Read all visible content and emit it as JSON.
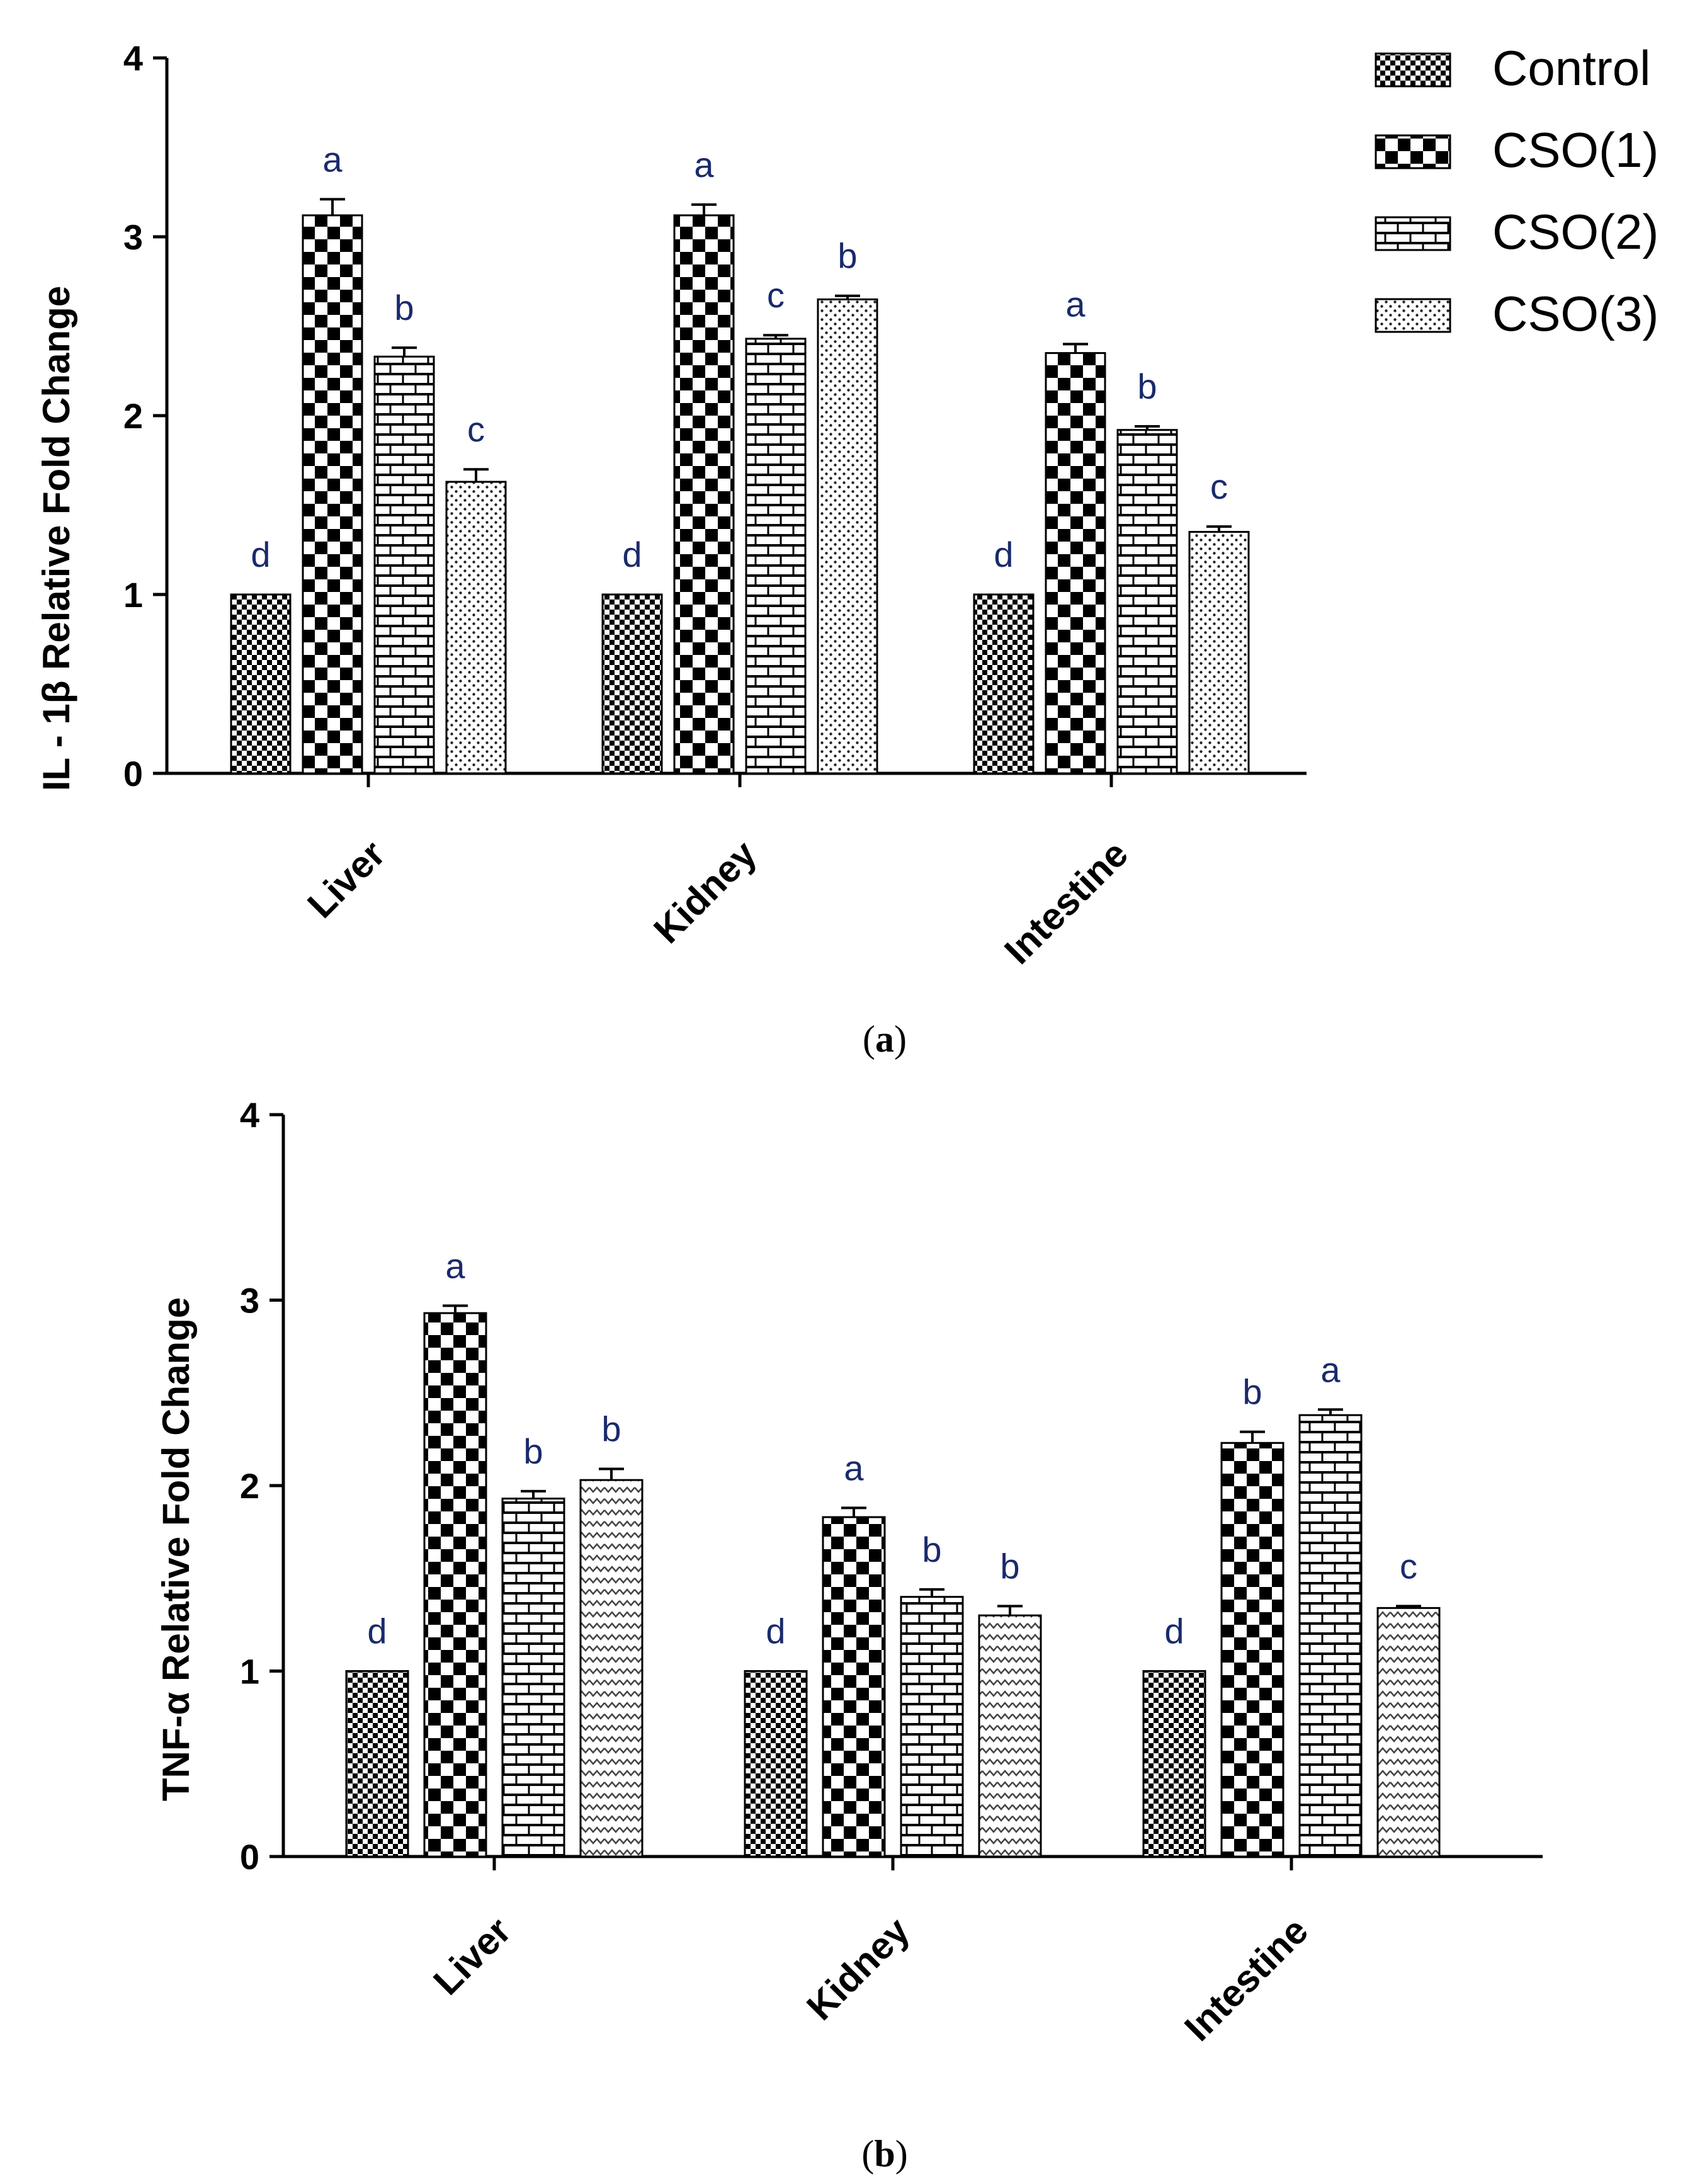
{
  "chart_data": [
    {
      "type": "bar",
      "panel_label": "a",
      "ylabel": "IL - 1β Relative Fold Change",
      "xlabel": "",
      "ylim": [
        0,
        4
      ],
      "yticks": [
        "0",
        "1",
        "2",
        "3",
        "4"
      ],
      "categories": [
        "Liver",
        "Kidney",
        "Intestine"
      ],
      "series": [
        {
          "name": "Control",
          "values": [
            1.0,
            1.0,
            1.0
          ],
          "errors": [
            0,
            0,
            0
          ],
          "letters": [
            "d",
            "d",
            "d"
          ],
          "pattern": "checker-fine"
        },
        {
          "name": "CSO(1)",
          "values": [
            3.12,
            3.12,
            2.35
          ],
          "errors": [
            0.09,
            0.06,
            0.05
          ],
          "letters": [
            "a",
            "a",
            "a"
          ],
          "pattern": "checker-large"
        },
        {
          "name": "CSO(2)",
          "values": [
            2.33,
            2.43,
            1.92
          ],
          "errors": [
            0.05,
            0.02,
            0.02
          ],
          "letters": [
            "b",
            "c",
            "b"
          ],
          "pattern": "brick"
        },
        {
          "name": "CSO(3)",
          "values": [
            1.63,
            2.65,
            1.35
          ],
          "errors": [
            0.07,
            0.02,
            0.03
          ],
          "letters": [
            "c",
            "b",
            "c"
          ],
          "pattern": "dots"
        }
      ],
      "legend": {
        "position": "top-right",
        "entries": [
          "Control",
          "CSO(1)",
          "CSO(2)",
          "CSO(3)"
        ]
      },
      "grid": false
    },
    {
      "type": "bar",
      "panel_label": "b",
      "ylabel": "TNF-α Relative Fold Change",
      "xlabel": "",
      "ylim": [
        0,
        4
      ],
      "yticks": [
        "0",
        "1",
        "2",
        "3",
        "4"
      ],
      "categories": [
        "Liver",
        "Kidney",
        "Intestine"
      ],
      "series": [
        {
          "name": "Control",
          "values": [
            1.0,
            1.0,
            1.0
          ],
          "errors": [
            0,
            0,
            0
          ],
          "letters": [
            "d",
            "d",
            "d"
          ],
          "pattern": "checker-fine"
        },
        {
          "name": "CSO(1)",
          "values": [
            2.93,
            1.83,
            2.23
          ],
          "errors": [
            0.04,
            0.05,
            0.06
          ],
          "letters": [
            "a",
            "a",
            "b"
          ],
          "pattern": "checker-large"
        },
        {
          "name": "CSO(2)",
          "values": [
            1.93,
            1.4,
            2.38
          ],
          "errors": [
            0.04,
            0.04,
            0.03
          ],
          "letters": [
            "b",
            "b",
            "a"
          ],
          "pattern": "brick"
        },
        {
          "name": "CSO(3)",
          "values": [
            2.03,
            1.3,
            1.34
          ],
          "errors": [
            0.06,
            0.05,
            0.01
          ],
          "letters": [
            "b",
            "b",
            "c"
          ],
          "pattern": "zigzag"
        }
      ],
      "grid": false
    }
  ],
  "colors": {
    "axis": "#000000",
    "bar_fill": "#ffffff",
    "letters": "#1a2a6b"
  }
}
